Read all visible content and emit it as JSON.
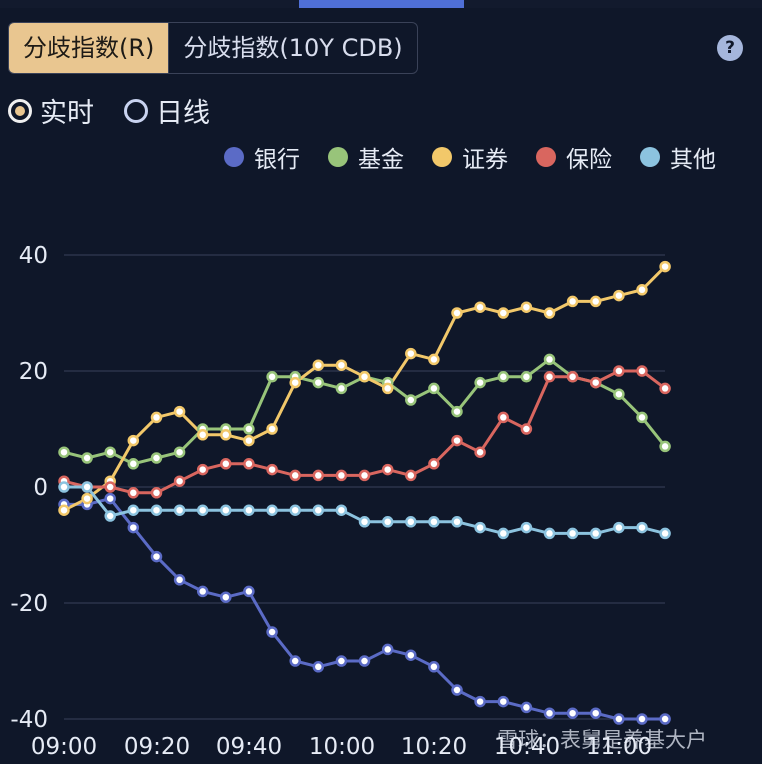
{
  "tabs": [
    {
      "label": "分歧指数(R)",
      "active": true
    },
    {
      "label": "分歧指数(10Y CDB)",
      "active": false
    }
  ],
  "help_icon": "question-circle-icon",
  "mode_options": [
    {
      "label": "实时",
      "checked": true
    },
    {
      "label": "日线",
      "checked": false
    }
  ],
  "watermark": "雪球：表舅是养基大户",
  "colors": {
    "background": "#0f1729",
    "active_tab": "#e9c690",
    "银行": "#5b6bc6",
    "基金": "#98c47a",
    "证券": "#f2c86a",
    "保险": "#d9665f",
    "其他": "#8cc3df"
  },
  "chart_data": {
    "type": "line",
    "title": "",
    "xlabel": "",
    "ylabel": "",
    "x_ticks": [
      "09:00",
      "09:20",
      "09:40",
      "10:00",
      "10:20",
      "10:40",
      "11:00"
    ],
    "y_ticks": [
      "40",
      "20",
      "0",
      "-20",
      "-40"
    ],
    "ylim": [
      -40,
      40
    ],
    "grid": "horizontal",
    "legend_position": "top-right",
    "x": [
      "09:00",
      "09:05",
      "09:10",
      "09:15",
      "09:20",
      "09:25",
      "09:30",
      "09:35",
      "09:40",
      "09:45",
      "09:50",
      "09:55",
      "10:00",
      "10:05",
      "10:10",
      "10:15",
      "10:20",
      "10:25",
      "10:30",
      "10:35",
      "10:40",
      "10:45",
      "10:50",
      "10:55",
      "11:00",
      "11:05",
      "11:10"
    ],
    "series": [
      {
        "name": "银行",
        "color": "#5b6bc6",
        "values": [
          -3,
          -3,
          -2,
          -7,
          -12,
          -16,
          -18,
          -19,
          -18,
          -25,
          -30,
          -31,
          -30,
          -30,
          -28,
          -29,
          -31,
          -35,
          -37,
          -37,
          -38,
          -39,
          -39,
          -39,
          -40,
          -40,
          -40
        ]
      },
      {
        "name": "基金",
        "color": "#98c47a",
        "values": [
          6,
          5,
          6,
          4,
          5,
          6,
          10,
          10,
          10,
          19,
          19,
          18,
          17,
          19,
          18,
          15,
          17,
          13,
          18,
          19,
          19,
          22,
          19,
          18,
          16,
          12,
          7
        ]
      },
      {
        "name": "证券",
        "color": "#f2c86a",
        "values": [
          -4,
          -2,
          1,
          8,
          12,
          13,
          9,
          9,
          8,
          10,
          18,
          21,
          21,
          19,
          17,
          23,
          22,
          30,
          31,
          30,
          31,
          30,
          32,
          32,
          33,
          34,
          38
        ]
      },
      {
        "name": "保险",
        "color": "#d9665f",
        "values": [
          1,
          0,
          0,
          -1,
          -1,
          1,
          3,
          4,
          4,
          3,
          2,
          2,
          2,
          2,
          3,
          2,
          4,
          8,
          6,
          12,
          10,
          19,
          19,
          18,
          20,
          20,
          17
        ]
      },
      {
        "name": "其他",
        "color": "#8cc3df",
        "values": [
          0,
          0,
          -5,
          -4,
          -4,
          -4,
          -4,
          -4,
          -4,
          -4,
          -4,
          -4,
          -4,
          -6,
          -6,
          -6,
          -6,
          -6,
          -7,
          -8,
          -7,
          -8,
          -8,
          -8,
          -7,
          -7,
          -8
        ]
      }
    ]
  }
}
